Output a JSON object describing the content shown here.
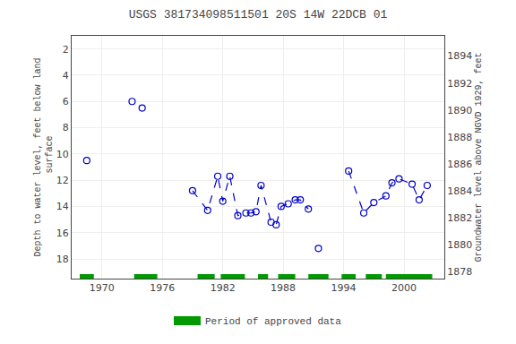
{
  "chart_data": {
    "type": "scatter",
    "title": "USGS 381734098511501 20S 14W 22DCB 01",
    "y_label": "Depth to water level, feet below land\n surface",
    "y2_label": "Groundwater level above NGVD 1929, feet",
    "xlim": [
      1967,
      2004
    ],
    "xticks": [
      1970,
      1976,
      1982,
      1988,
      1994,
      2000
    ],
    "ylim": [
      19.5,
      1.0
    ],
    "yticks": [
      2,
      4,
      6,
      8,
      10,
      12,
      14,
      16,
      18
    ],
    "y2lim": [
      1877.5,
      1895.5
    ],
    "y2ticks": [
      1878,
      1880,
      1882,
      1884,
      1886,
      1888,
      1890,
      1892,
      1894
    ],
    "grid": true,
    "legend": "bottom",
    "series": [
      {
        "type": "scatter",
        "color": "#0000cc",
        "marker": "open_circle",
        "x": [
          1968.5,
          1973.0,
          1974.0,
          1979.0,
          1980.5,
          1981.5,
          1982.0,
          1982.7,
          1983.5,
          1984.3,
          1984.8,
          1985.3,
          1985.8,
          1986.8,
          1987.3,
          1987.8,
          1988.5,
          1989.2,
          1989.7,
          1990.5,
          1991.5,
          1994.5,
          1996.0,
          1997.0,
          1998.2,
          1998.8,
          1999.5,
          2000.8,
          2001.5,
          2002.3
        ],
        "values": [
          10.5,
          6.0,
          6.5,
          12.8,
          14.3,
          11.7,
          13.6,
          11.7,
          14.7,
          14.5,
          14.5,
          14.4,
          12.4,
          15.2,
          15.4,
          14.0,
          13.8,
          13.5,
          13.5,
          14.2,
          17.2,
          11.3,
          14.5,
          13.7,
          13.2,
          12.2,
          11.9,
          12.3,
          13.5,
          12.4
        ]
      },
      {
        "type": "line",
        "color": "#0000cc",
        "line_style": "dashed",
        "x": [
          1979.0,
          1980.5,
          1981.5,
          1982.0,
          1982.7,
          1983.5,
          1984.3,
          1984.8,
          1985.3,
          1985.8,
          1986.8,
          1987.3,
          1987.8,
          1988.5,
          1989.2,
          1989.7,
          1990.5
        ],
        "values": [
          12.8,
          14.3,
          11.7,
          13.6,
          11.7,
          14.7,
          14.5,
          14.5,
          14.4,
          12.4,
          15.2,
          15.4,
          14.0,
          13.8,
          13.5,
          13.5,
          14.2
        ]
      },
      {
        "type": "line",
        "color": "#0000cc",
        "line_style": "dashed",
        "x": [
          1994.5,
          1996.0,
          1997.0,
          1998.2,
          1998.8,
          1999.5,
          2000.8,
          2001.5,
          2002.3
        ],
        "values": [
          11.3,
          14.5,
          13.7,
          13.2,
          12.2,
          11.9,
          12.3,
          13.5,
          12.4
        ]
      },
      {
        "type": "span",
        "name": "Period of approved data",
        "color": "#009900",
        "spans": [
          [
            1967.8,
            1969.2
          ],
          [
            1973.2,
            1975.5
          ],
          [
            1979.5,
            1981.2
          ],
          [
            1981.8,
            1984.2
          ],
          [
            1985.5,
            1986.5
          ],
          [
            1987.5,
            1989.2
          ],
          [
            1990.5,
            1992.5
          ],
          [
            1993.8,
            1995.2
          ],
          [
            1996.2,
            1997.8
          ],
          [
            1998.2,
            2002.8
          ]
        ]
      }
    ]
  }
}
